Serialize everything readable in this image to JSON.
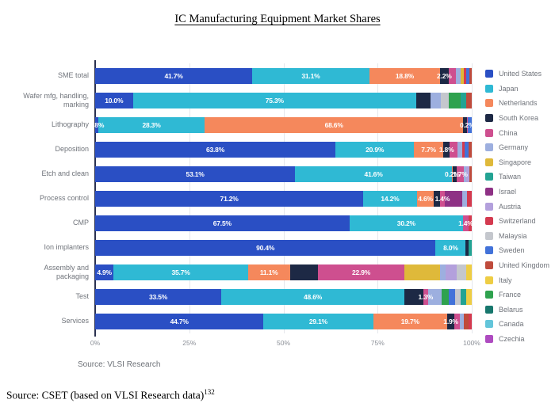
{
  "title": "IC Manufacturing Equipment Market Shares",
  "chart_source": "Source: VLSI Research",
  "footer": {
    "text": "Source: CSET (based on VLSI Research data)",
    "superscript": "132"
  },
  "chart_data": {
    "type": "bar",
    "orientation": "horizontal",
    "stacked": true,
    "title": "IC Manufacturing Equipment Market Shares",
    "x_ticks": [
      "0%",
      "25%",
      "50%",
      "75%",
      "100%"
    ],
    "xlim": [
      0,
      100
    ],
    "unit": "%",
    "grid": true,
    "legend_position": "right",
    "legend": [
      {
        "name": "United States",
        "color": "#2a4fc4"
      },
      {
        "name": "Japan",
        "color": "#2fb9d4"
      },
      {
        "name": "Netherlands",
        "color": "#f5885c"
      },
      {
        "name": "South Korea",
        "color": "#1d2945"
      },
      {
        "name": "China",
        "color": "#ce4f8f"
      },
      {
        "name": "Germany",
        "color": "#9dafdf"
      },
      {
        "name": "Singapore",
        "color": "#dfb93a"
      },
      {
        "name": "Taiwan",
        "color": "#23a393"
      },
      {
        "name": "Israel",
        "color": "#8e3185"
      },
      {
        "name": "Austria",
        "color": "#b3a0dc"
      },
      {
        "name": "Switzerland",
        "color": "#d43a4f"
      },
      {
        "name": "Malaysia",
        "color": "#c4c7cd"
      },
      {
        "name": "Sweden",
        "color": "#4272d9"
      },
      {
        "name": "United Kingdom",
        "color": "#bf4b3c"
      },
      {
        "name": "Italy",
        "color": "#eecd44"
      },
      {
        "name": "France",
        "color": "#2fa24e"
      },
      {
        "name": "Belarus",
        "color": "#17776d"
      },
      {
        "name": "Canada",
        "color": "#63c5da"
      },
      {
        "name": "Czechia",
        "color": "#ae4bc0"
      }
    ],
    "categories": [
      "SME total",
      "Wafer mfg, handling, marking",
      "Lithography",
      "Deposition",
      "Etch and clean",
      "Process control",
      "CMP",
      "Ion implanters",
      "Assembly and packaging",
      "Test",
      "Services"
    ],
    "bars": [
      {
        "category": "SME total",
        "segments": [
          {
            "country": "United States",
            "value": 41.7,
            "label": "41.7%"
          },
          {
            "country": "Japan",
            "value": 31.1,
            "label": "31.1%"
          },
          {
            "country": "Netherlands",
            "value": 18.8,
            "label": "18.8%"
          },
          {
            "country": "South Korea",
            "value": 2.2,
            "label": "2.2%"
          },
          {
            "country": "China",
            "value": 2.0,
            "label": ""
          },
          {
            "country": "Germany",
            "value": 1.2,
            "label": ""
          },
          {
            "country": "Singapore",
            "value": 0.8,
            "label": ""
          },
          {
            "country": "Switzerland",
            "value": 0.7,
            "label": ""
          },
          {
            "country": "Sweden",
            "value": 0.9,
            "label": ""
          },
          {
            "country": "United Kingdom",
            "value": 0.6,
            "label": ""
          }
        ]
      },
      {
        "category": "Wafer mfg, handling, marking",
        "segments": [
          {
            "country": "United States",
            "value": 10.0,
            "label": "10.0%"
          },
          {
            "country": "Japan",
            "value": 75.3,
            "label": "75.3%"
          },
          {
            "country": "South Korea",
            "value": 3.8,
            "label": ""
          },
          {
            "country": "Germany",
            "value": 2.6,
            "label": ""
          },
          {
            "country": "Malaysia",
            "value": 2.1,
            "label": ""
          },
          {
            "country": "France",
            "value": 3.2,
            "label": ""
          },
          {
            "country": "Taiwan",
            "value": 1.6,
            "label": ""
          },
          {
            "country": "United Kingdom",
            "value": 1.4,
            "label": ""
          }
        ]
      },
      {
        "category": "Lithography",
        "segments": [
          {
            "country": "United States",
            "value": 0.8,
            "label": "0.8%"
          },
          {
            "country": "Japan",
            "value": 28.3,
            "label": "28.3%"
          },
          {
            "country": "Netherlands",
            "value": 68.6,
            "label": "68.6%"
          },
          {
            "country": "South Korea",
            "value": 1.0,
            "label": ""
          },
          {
            "country": "China",
            "value": 0.2,
            "label": "0.2%"
          },
          {
            "country": "Sweden",
            "value": 1.1,
            "label": ""
          }
        ]
      },
      {
        "category": "Deposition",
        "segments": [
          {
            "country": "United States",
            "value": 63.8,
            "label": "63.8%"
          },
          {
            "country": "Japan",
            "value": 20.9,
            "label": "20.9%"
          },
          {
            "country": "Netherlands",
            "value": 7.7,
            "label": "7.7%"
          },
          {
            "country": "South Korea",
            "value": 1.8,
            "label": "1.8%"
          },
          {
            "country": "China",
            "value": 2.0,
            "label": ""
          },
          {
            "country": "Germany",
            "value": 1.2,
            "label": ""
          },
          {
            "country": "Switzerland",
            "value": 0.8,
            "label": ""
          },
          {
            "country": "Sweden",
            "value": 1.0,
            "label": ""
          },
          {
            "country": "United Kingdom",
            "value": 0.8,
            "label": ""
          }
        ]
      },
      {
        "category": "Etch and clean",
        "segments": [
          {
            "country": "United States",
            "value": 53.1,
            "label": "53.1%"
          },
          {
            "country": "Japan",
            "value": 41.6,
            "label": "41.6%"
          },
          {
            "country": "Netherlands",
            "value": 0.2,
            "label": "0.2%"
          },
          {
            "country": "South Korea",
            "value": 1.2,
            "label": ""
          },
          {
            "country": "China",
            "value": 1.7,
            "label": "1.7%"
          },
          {
            "country": "Germany",
            "value": 0.8,
            "label": ""
          },
          {
            "country": "Austria",
            "value": 0.7,
            "label": ""
          },
          {
            "country": "United Kingdom",
            "value": 0.7,
            "label": ""
          }
        ]
      },
      {
        "category": "Process control",
        "segments": [
          {
            "country": "United States",
            "value": 71.2,
            "label": "71.2%"
          },
          {
            "country": "Japan",
            "value": 14.2,
            "label": "14.2%"
          },
          {
            "country": "Netherlands",
            "value": 4.6,
            "label": "4.6%"
          },
          {
            "country": "South Korea",
            "value": 1.5,
            "label": ""
          },
          {
            "country": "China",
            "value": 1.4,
            "label": "1.4%"
          },
          {
            "country": "Israel",
            "value": 4.5,
            "label": ""
          },
          {
            "country": "Germany",
            "value": 1.3,
            "label": ""
          },
          {
            "country": "Switzerland",
            "value": 1.3,
            "label": ""
          }
        ]
      },
      {
        "category": "CMP",
        "segments": [
          {
            "country": "United States",
            "value": 67.5,
            "label": "67.5%"
          },
          {
            "country": "Japan",
            "value": 30.2,
            "label": "30.2%"
          },
          {
            "country": "China",
            "value": 1.4,
            "label": "1.4%"
          },
          {
            "country": "Switzerland",
            "value": 0.9,
            "label": ""
          }
        ]
      },
      {
        "category": "Ion implanters",
        "segments": [
          {
            "country": "United States",
            "value": 90.4,
            "label": "90.4%"
          },
          {
            "country": "Japan",
            "value": 8.0,
            "label": "8.0%"
          },
          {
            "country": "South Korea",
            "value": 0.8,
            "label": ""
          },
          {
            "country": "Taiwan",
            "value": 0.8,
            "label": ""
          }
        ]
      },
      {
        "category": "Assembly and packaging",
        "segments": [
          {
            "country": "United States",
            "value": 4.9,
            "label": "4.9%"
          },
          {
            "country": "Japan",
            "value": 35.7,
            "label": "35.7%"
          },
          {
            "country": "Netherlands",
            "value": 11.1,
            "label": "11.1%"
          },
          {
            "country": "South Korea",
            "value": 7.5,
            "label": ""
          },
          {
            "country": "China",
            "value": 22.9,
            "label": "22.9%"
          },
          {
            "country": "Singapore",
            "value": 9.5,
            "label": ""
          },
          {
            "country": "Germany",
            "value": 1.5,
            "label": ""
          },
          {
            "country": "Austria",
            "value": 3.0,
            "label": ""
          },
          {
            "country": "Malaysia",
            "value": 2.4,
            "label": ""
          },
          {
            "country": "Italy",
            "value": 1.5,
            "label": ""
          }
        ]
      },
      {
        "category": "Test",
        "segments": [
          {
            "country": "United States",
            "value": 33.5,
            "label": "33.5%"
          },
          {
            "country": "Japan",
            "value": 48.6,
            "label": "48.6%"
          },
          {
            "country": "South Korea",
            "value": 5.0,
            "label": ""
          },
          {
            "country": "China",
            "value": 1.3,
            "label": "1.3%"
          },
          {
            "country": "Germany",
            "value": 3.5,
            "label": ""
          },
          {
            "country": "France",
            "value": 2.0,
            "label": ""
          },
          {
            "country": "Sweden",
            "value": 1.6,
            "label": ""
          },
          {
            "country": "Malaysia",
            "value": 1.5,
            "label": ""
          },
          {
            "country": "Taiwan",
            "value": 1.5,
            "label": ""
          },
          {
            "country": "Italy",
            "value": 1.5,
            "label": ""
          }
        ]
      },
      {
        "category": "Services",
        "segments": [
          {
            "country": "United States",
            "value": 44.7,
            "label": "44.7%"
          },
          {
            "country": "Japan",
            "value": 29.1,
            "label": "29.1%"
          },
          {
            "country": "Netherlands",
            "value": 19.7,
            "label": "19.7%"
          },
          {
            "country": "South Korea",
            "value": 1.9,
            "label": "1.9%"
          },
          {
            "country": "China",
            "value": 1.5,
            "label": ""
          },
          {
            "country": "Germany",
            "value": 1.0,
            "label": ""
          },
          {
            "country": "United Kingdom",
            "value": 1.2,
            "label": ""
          },
          {
            "country": "Switzerland",
            "value": 0.9,
            "label": ""
          }
        ]
      }
    ]
  }
}
